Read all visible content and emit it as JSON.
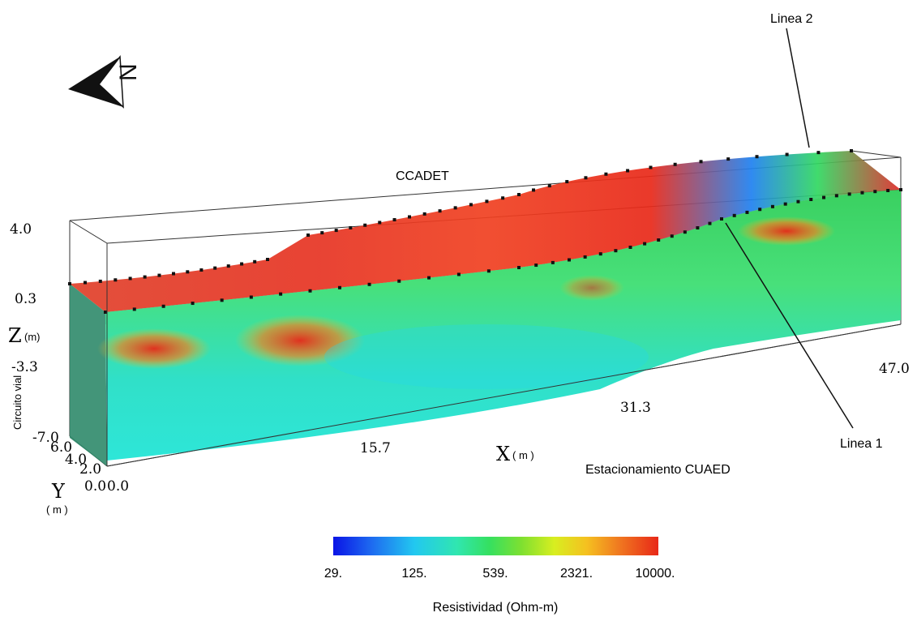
{
  "north_arrow": {
    "label": "N"
  },
  "labels": {
    "line2": "Linea 2",
    "line1": "Linea 1",
    "ccadet": "CCADET",
    "circuito": "Circuito vial",
    "estacionamiento": "Estacionamiento CUAED"
  },
  "axes": {
    "z": {
      "label": "Z",
      "unit": "(m)",
      "ticks": [
        "4.0",
        "0.3",
        "-3.3",
        "-7.0"
      ]
    },
    "x": {
      "label": "X",
      "unit": "( m )",
      "ticks": [
        "0.0",
        "15.7",
        "31.3",
        "47.0"
      ]
    },
    "y": {
      "label": "Y",
      "unit": "( m )",
      "ticks": [
        "0.0",
        "2.0",
        "4.0",
        "6.0"
      ]
    }
  },
  "colorbar": {
    "title": "Resistividad (Ohm-m)",
    "ticks": [
      "29.",
      "125.",
      "539.",
      "2321.",
      "10000."
    ],
    "colors": [
      "#0a14e6",
      "#1e6cf0",
      "#22c8f0",
      "#30e6b0",
      "#35e060",
      "#7fe030",
      "#d8ee20",
      "#f5c020",
      "#f07820",
      "#e82818"
    ]
  }
}
